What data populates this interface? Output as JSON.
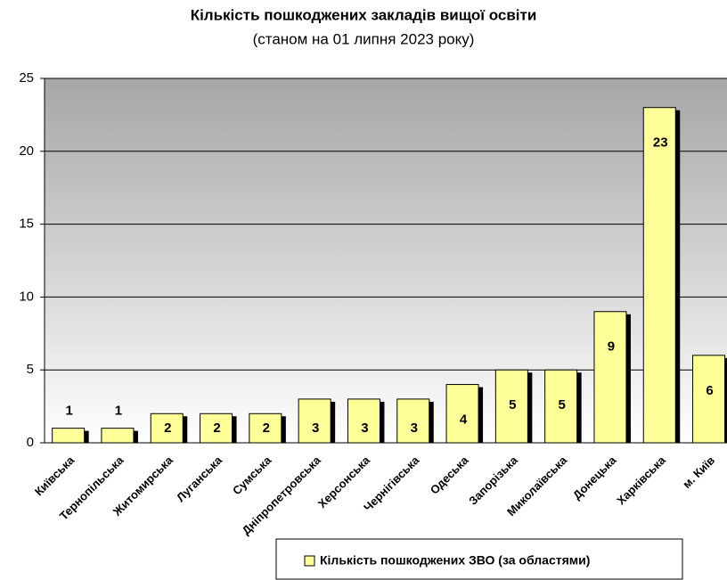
{
  "chart_data": {
    "type": "bar",
    "title": "Кількість пошкоджених закладів вищої освіти",
    "subtitle": "(станом на 01 липня 2023 року)",
    "categories": [
      "Київська",
      "Тернопільська",
      "Житомирська",
      "Луганська",
      "Сумська",
      "Дніпропетровська",
      "Херсонська",
      "Чернігівська",
      "Одеська",
      "Запорізька",
      "Миколаївська",
      "Донецька",
      "Харківська",
      "м. Київ"
    ],
    "series": [
      {
        "name": "Кількість пошкоджених ЗВО (за областями)",
        "color": "#ffff99",
        "values": [
          1,
          1,
          2,
          2,
          2,
          3,
          3,
          3,
          4,
          5,
          5,
          9,
          23,
          6
        ]
      }
    ],
    "ylim": [
      0,
      25
    ],
    "yticks": [
      0,
      5,
      10,
      15,
      20,
      25
    ],
    "grid": true,
    "legend": "bottom"
  }
}
